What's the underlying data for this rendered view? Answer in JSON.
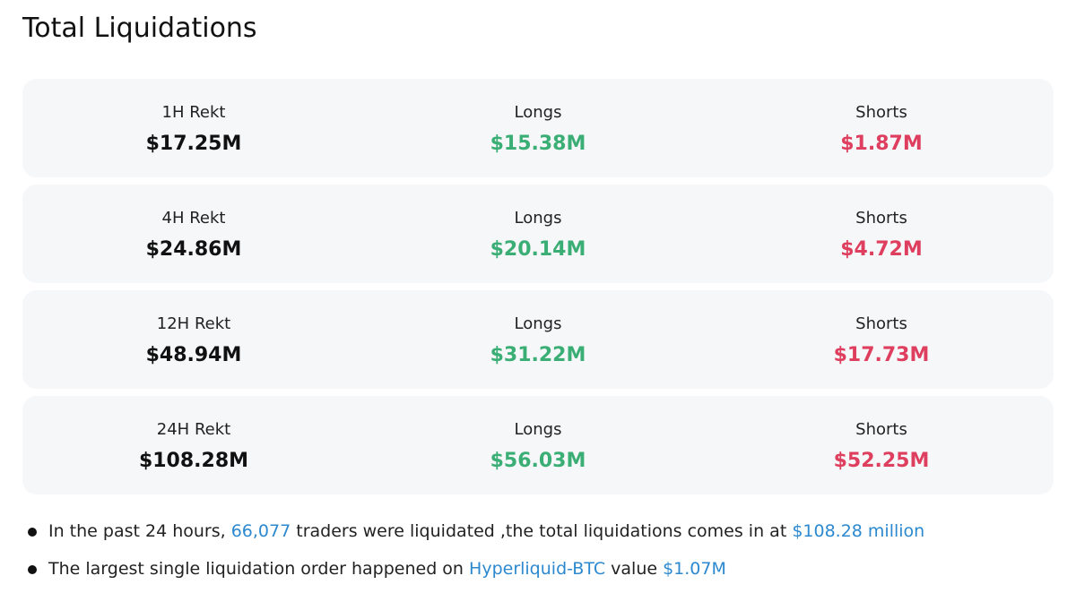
{
  "title": "Total Liquidations",
  "rows": [
    {
      "period": "1H Rekt",
      "total": "$17.25M",
      "longs_label": "Longs",
      "longs": "$15.38M",
      "shorts_label": "Shorts",
      "shorts": "$1.87M"
    },
    {
      "period": "4H Rekt",
      "total": "$24.86M",
      "longs_label": "Longs",
      "longs": "$20.14M",
      "shorts_label": "Shorts",
      "shorts": "$4.72M"
    },
    {
      "period": "12H Rekt",
      "total": "$48.94M",
      "longs_label": "Longs",
      "longs": "$31.22M",
      "shorts_label": "Shorts",
      "shorts": "$17.73M"
    },
    {
      "period": "24H Rekt",
      "total": "$108.28M",
      "longs_label": "Longs",
      "longs": "$56.03M",
      "shorts_label": "Shorts",
      "shorts": "$52.25M"
    }
  ],
  "notes": [
    {
      "parts": [
        {
          "text": "In the past 24 hours, ",
          "link": false
        },
        {
          "text": "66,077",
          "link": true
        },
        {
          "text": " traders were liquidated ,the total liquidations comes in at ",
          "link": false
        },
        {
          "text": "$108.28 million",
          "link": true
        }
      ]
    },
    {
      "parts": [
        {
          "text": "The largest single liquidation order happened on ",
          "link": false
        },
        {
          "text": "Hyperliquid-BTC",
          "link": true
        },
        {
          "text": " value ",
          "link": false
        },
        {
          "text": "$1.07M",
          "link": true
        }
      ]
    }
  ]
}
